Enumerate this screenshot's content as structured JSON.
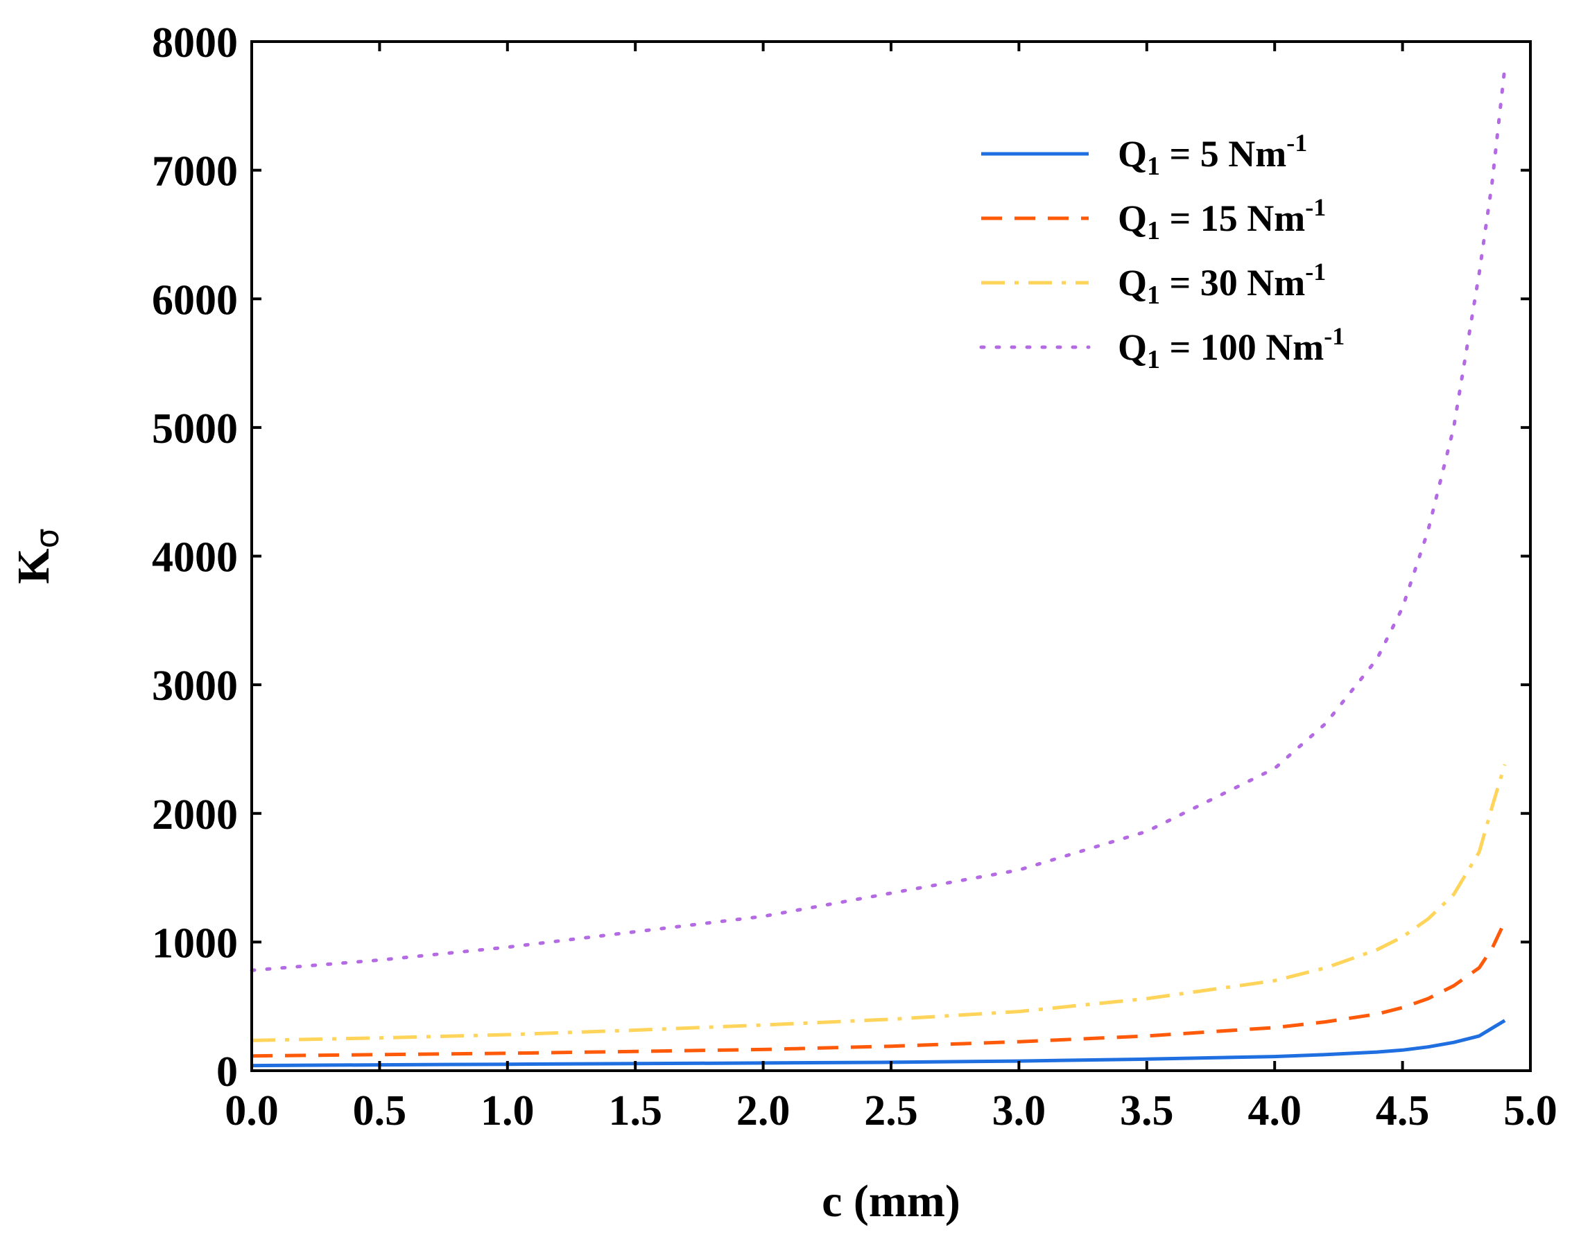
{
  "chart_data": {
    "type": "line",
    "title": "",
    "xlabel": "c (mm)",
    "ylabel_main": "K",
    "ylabel_sub": "σ",
    "xlim": [
      0,
      5
    ],
    "ylim": [
      0,
      8000
    ],
    "xticks": [
      "0.0",
      "0.5",
      "1.0",
      "1.5",
      "2.0",
      "2.5",
      "3.0",
      "3.5",
      "4.0",
      "4.5",
      "5.0"
    ],
    "yticks": [
      "0",
      "1000",
      "2000",
      "3000",
      "4000",
      "5000",
      "6000",
      "7000",
      "8000"
    ],
    "legend_position": "top-right",
    "x": [
      0.0,
      0.5,
      1.0,
      1.5,
      2.0,
      2.5,
      3.0,
      3.5,
      4.0,
      4.2,
      4.4,
      4.5,
      4.6,
      4.7,
      4.8,
      4.85,
      4.9
    ],
    "series": [
      {
        "name": "Q1 = 5 Nm-1",
        "legend_main": "Q",
        "legend_sub": "1",
        "legend_mid": " = 5 Nm",
        "legend_sup": "-1",
        "color": "#1f6fe0",
        "style": "solid",
        "values": [
          40,
          45,
          50,
          55,
          60,
          65,
          75,
          90,
          110,
          125,
          145,
          160,
          185,
          220,
          270,
          330,
          390
        ]
      },
      {
        "name": "Q1 = 15 Nm-1",
        "legend_main": "Q",
        "legend_sub": "1",
        "legend_mid": " = 15 Nm",
        "legend_sup": "-1",
        "color": "#ff5a0a",
        "style": "dashed",
        "values": [
          115,
          125,
          135,
          150,
          165,
          190,
          225,
          270,
          335,
          380,
          440,
          490,
          560,
          660,
          800,
          950,
          1160
        ]
      },
      {
        "name": "Q1 = 30 Nm-1",
        "legend_main": "Q",
        "legend_sub": "1",
        "legend_mid": " = 30 Nm",
        "legend_sup": "-1",
        "color": "#ffd45a",
        "style": "dashdot",
        "values": [
          235,
          255,
          280,
          315,
          355,
          400,
          460,
          560,
          700,
          800,
          940,
          1040,
          1180,
          1370,
          1700,
          2050,
          2380
        ]
      },
      {
        "name": "Q1 = 100 Nm-1",
        "legend_main": "Q",
        "legend_sub": "1",
        "legend_mid": " = 100 Nm",
        "legend_sup": "-1",
        "color": "#b36ae2",
        "style": "dotted",
        "values": [
          780,
          860,
          960,
          1080,
          1200,
          1380,
          1560,
          1860,
          2350,
          2700,
          3200,
          3600,
          4200,
          5000,
          6200,
          6900,
          7800
        ]
      }
    ]
  }
}
